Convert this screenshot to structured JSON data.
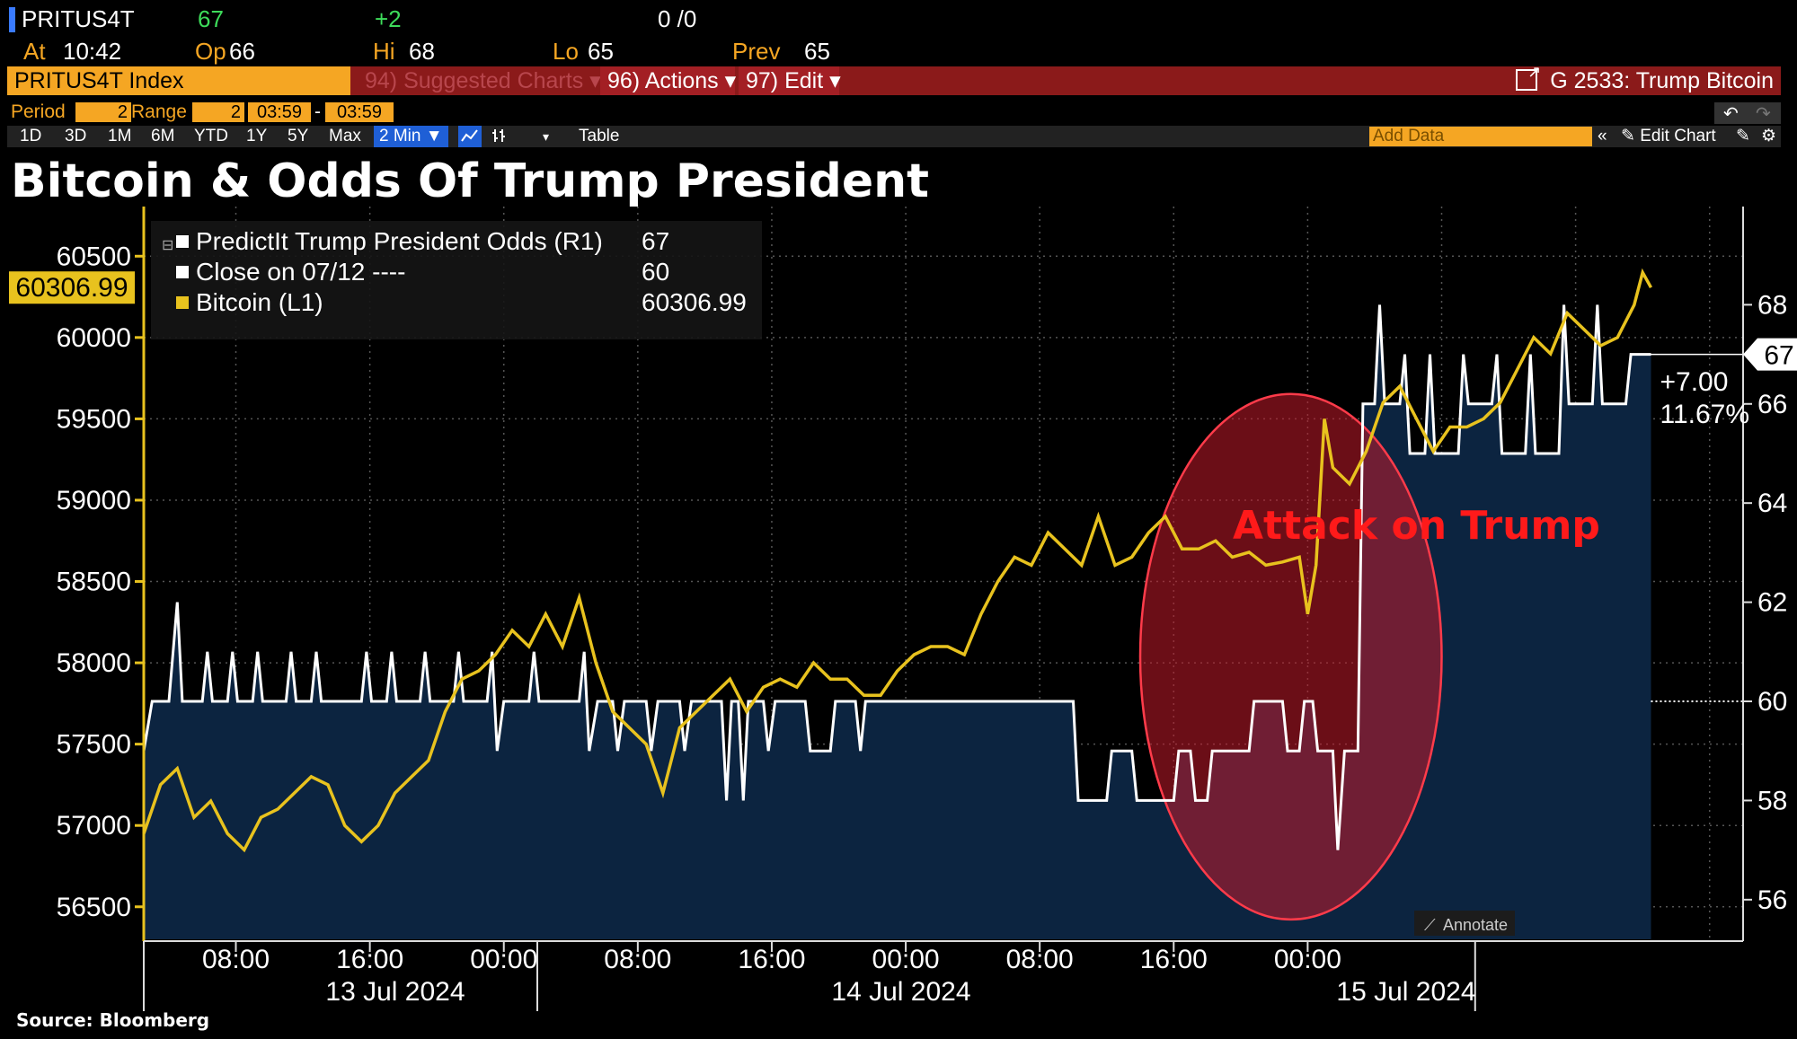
{
  "header": {
    "ticker": "PRITUS4T",
    "last": "67",
    "change": "+2",
    "bidask": "0 /0",
    "at_label": "At",
    "at_time": "10:42",
    "open_label": "Op",
    "open": "66",
    "high_label": "Hi",
    "high": "68",
    "low_label": "Lo",
    "low": "65",
    "prev_label": "Prev",
    "prev": "65"
  },
  "toolbar": {
    "index_name": "PRITUS4T Index",
    "suggested": "94) Suggested Charts ▾",
    "actions": "96) Actions ▾",
    "edit": "97) Edit ▾",
    "chart_title": "G 2533: Trump Bitcoin"
  },
  "period_row": {
    "period_label": "Period",
    "period_value": "2",
    "range_label": "Range",
    "range_value": "2",
    "from_time": "03:59",
    "dash": "-",
    "to_time": "03:59"
  },
  "range_buttons": [
    "1D",
    "3D",
    "1M",
    "6M",
    "YTD",
    "1Y",
    "5Y",
    "Max"
  ],
  "interval": "2 Min ▼",
  "table_label": "Table",
  "add_data_placeholder": "Add Data",
  "edit_chart_label": "Edit Chart",
  "annotate_label": "Annotate",
  "source": "Source: Bloomberg",
  "colors": {
    "bitcoin": "#e8c21e",
    "odds": "#ffffff",
    "area_fill": "#0c2440",
    "ellipse_fill": "#c21a2a",
    "annotation_red": "#ff1a1a",
    "accent_orange": "#f5a623"
  },
  "chart_data": {
    "type": "line",
    "title": "Bitcoin & Odds Of Trump President",
    "legend": [
      {
        "name": "PredictIt Trump President Odds (R1)",
        "value": "67"
      },
      {
        "name": "Close on 07/12 ----",
        "value": "60"
      },
      {
        "name": "Bitcoin (L1)",
        "value": "60306.99"
      }
    ],
    "legend_position": "top-left",
    "left_axis": {
      "ticks": [
        "56500",
        "57000",
        "57500",
        "58000",
        "58500",
        "59000",
        "59500",
        "60000",
        "60500"
      ],
      "range": [
        56300,
        60750
      ],
      "last_value_tag": "60306.99"
    },
    "right_axis": {
      "ticks": [
        "56",
        "58",
        "60",
        "62",
        "64",
        "66",
        "68"
      ],
      "range": [
        55.2,
        69.8
      ],
      "last_value_tag": "67"
    },
    "x_time_labels": [
      "08:00",
      "16:00",
      "00:00",
      "08:00",
      "16:00",
      "00:00",
      "08:00",
      "16:00",
      "00:00"
    ],
    "x_date_labels": [
      "13 Jul 2024",
      "14 Jul 2024",
      "15 Jul 2024"
    ],
    "x_range_hours": [
      2.5,
      98.0
    ],
    "change_annotation": [
      "+7.00",
      "11.67%"
    ],
    "reference_line": {
      "label": "Close on 07/12",
      "value": 60
    },
    "event_annotation": "Attack on  Trump",
    "series": [
      {
        "name": "Bitcoin (L1)",
        "axis": "left",
        "points": [
          [
            2.5,
            56950
          ],
          [
            3.5,
            57250
          ],
          [
            4.5,
            57350
          ],
          [
            5.5,
            57050
          ],
          [
            6.5,
            57150
          ],
          [
            7.5,
            56950
          ],
          [
            8.5,
            56850
          ],
          [
            9.5,
            57050
          ],
          [
            10.5,
            57100
          ],
          [
            11.5,
            57200
          ],
          [
            12.5,
            57300
          ],
          [
            13.5,
            57250
          ],
          [
            14.5,
            57000
          ],
          [
            15.5,
            56900
          ],
          [
            16.5,
            57000
          ],
          [
            17.5,
            57200
          ],
          [
            18.5,
            57300
          ],
          [
            19.5,
            57400
          ],
          [
            20.5,
            57700
          ],
          [
            21.5,
            57900
          ],
          [
            22.5,
            57950
          ],
          [
            23.5,
            58050
          ],
          [
            24.5,
            58200
          ],
          [
            25.5,
            58100
          ],
          [
            26.5,
            58300
          ],
          [
            27.5,
            58100
          ],
          [
            28.5,
            58400
          ],
          [
            29.5,
            58000
          ],
          [
            30.5,
            57700
          ],
          [
            31.5,
            57600
          ],
          [
            32.5,
            57500
          ],
          [
            33.5,
            57200
          ],
          [
            34.5,
            57600
          ],
          [
            35.5,
            57700
          ],
          [
            36.5,
            57800
          ],
          [
            37.5,
            57900
          ],
          [
            38.5,
            57700
          ],
          [
            39.5,
            57850
          ],
          [
            40.5,
            57900
          ],
          [
            41.5,
            57850
          ],
          [
            42.5,
            58000
          ],
          [
            43.5,
            57900
          ],
          [
            44.5,
            57900
          ],
          [
            45.5,
            57800
          ],
          [
            46.5,
            57800
          ],
          [
            47.5,
            57950
          ],
          [
            48.5,
            58050
          ],
          [
            49.5,
            58100
          ],
          [
            50.5,
            58100
          ],
          [
            51.5,
            58050
          ],
          [
            52.5,
            58300
          ],
          [
            53.5,
            58500
          ],
          [
            54.5,
            58650
          ],
          [
            55.5,
            58600
          ],
          [
            56.5,
            58800
          ],
          [
            57.5,
            58700
          ],
          [
            58.5,
            58600
          ],
          [
            59.5,
            58900
          ],
          [
            60.5,
            58600
          ],
          [
            61.5,
            58650
          ],
          [
            62.5,
            58800
          ],
          [
            63.5,
            58900
          ],
          [
            64.5,
            58700
          ],
          [
            65.5,
            58700
          ],
          [
            66.5,
            58750
          ],
          [
            67.5,
            58650
          ],
          [
            68.5,
            58680
          ],
          [
            69.5,
            58600
          ],
          [
            70.5,
            58620
          ],
          [
            71.5,
            58650
          ],
          [
            72.0,
            58300
          ],
          [
            72.5,
            58600
          ],
          [
            73.0,
            59500
          ],
          [
            73.5,
            59200
          ],
          [
            74.5,
            59100
          ],
          [
            75.5,
            59300
          ],
          [
            76.5,
            59600
          ],
          [
            77.5,
            59700
          ],
          [
            78.5,
            59500
          ],
          [
            79.5,
            59300
          ],
          [
            80.5,
            59450
          ],
          [
            81.5,
            59450
          ],
          [
            82.5,
            59500
          ],
          [
            83.5,
            59600
          ],
          [
            84.5,
            59800
          ],
          [
            85.5,
            60000
          ],
          [
            86.5,
            59900
          ],
          [
            87.5,
            60150
          ],
          [
            88.5,
            60050
          ],
          [
            89.5,
            59950
          ],
          [
            90.5,
            60000
          ],
          [
            91.5,
            60200
          ],
          [
            92.0,
            60400
          ],
          [
            92.5,
            60306.99
          ]
        ]
      },
      {
        "name": "PredictIt Trump President Odds (R1)",
        "axis": "right",
        "points": [
          [
            2.5,
            59
          ],
          [
            3.0,
            60
          ],
          [
            4.0,
            60
          ],
          [
            4.5,
            62
          ],
          [
            4.8,
            60
          ],
          [
            6.0,
            60
          ],
          [
            6.3,
            61
          ],
          [
            6.6,
            60
          ],
          [
            7.5,
            60
          ],
          [
            7.8,
            61
          ],
          [
            8.1,
            60
          ],
          [
            9.0,
            60
          ],
          [
            9.3,
            61
          ],
          [
            9.6,
            60
          ],
          [
            11.0,
            60
          ],
          [
            11.3,
            61
          ],
          [
            11.6,
            60
          ],
          [
            12.5,
            60
          ],
          [
            12.8,
            61
          ],
          [
            13.1,
            60
          ],
          [
            15.5,
            60
          ],
          [
            15.8,
            61
          ],
          [
            16.1,
            60
          ],
          [
            17.0,
            60
          ],
          [
            17.3,
            61
          ],
          [
            17.6,
            60
          ],
          [
            19.0,
            60
          ],
          [
            19.3,
            61
          ],
          [
            19.6,
            60
          ],
          [
            21.0,
            60
          ],
          [
            21.3,
            61
          ],
          [
            21.6,
            60
          ],
          [
            23.0,
            60
          ],
          [
            23.3,
            61
          ],
          [
            23.6,
            59
          ],
          [
            24.0,
            60
          ],
          [
            25.5,
            60
          ],
          [
            25.8,
            61
          ],
          [
            26.1,
            60
          ],
          [
            28.5,
            60
          ],
          [
            28.8,
            61
          ],
          [
            29.1,
            59
          ],
          [
            29.6,
            60
          ],
          [
            30.5,
            60
          ],
          [
            30.8,
            59
          ],
          [
            31.2,
            60
          ],
          [
            32.5,
            60
          ],
          [
            32.8,
            59
          ],
          [
            33.2,
            60
          ],
          [
            34.5,
            60
          ],
          [
            34.8,
            59
          ],
          [
            35.2,
            60
          ],
          [
            37.0,
            60
          ],
          [
            37.3,
            58
          ],
          [
            37.6,
            60
          ],
          [
            38.0,
            60
          ],
          [
            38.3,
            58
          ],
          [
            38.6,
            60
          ],
          [
            39.5,
            60
          ],
          [
            39.8,
            59
          ],
          [
            40.2,
            60
          ],
          [
            42.0,
            60
          ],
          [
            42.3,
            59
          ],
          [
            43.5,
            59
          ],
          [
            43.8,
            60
          ],
          [
            45.0,
            60
          ],
          [
            45.3,
            59
          ],
          [
            45.6,
            60
          ],
          [
            58.0,
            60
          ],
          [
            58.3,
            58
          ],
          [
            60.0,
            58
          ],
          [
            60.3,
            59
          ],
          [
            61.5,
            59
          ],
          [
            61.8,
            58
          ],
          [
            64.0,
            58
          ],
          [
            64.3,
            59
          ],
          [
            65.0,
            59
          ],
          [
            65.3,
            58
          ],
          [
            66.0,
            58
          ],
          [
            66.3,
            59
          ],
          [
            68.5,
            59
          ],
          [
            68.8,
            60
          ],
          [
            70.5,
            60
          ],
          [
            70.8,
            59
          ],
          [
            71.5,
            59
          ],
          [
            71.8,
            60
          ],
          [
            72.3,
            60
          ],
          [
            72.6,
            59
          ],
          [
            73.5,
            59
          ],
          [
            73.8,
            57
          ],
          [
            74.2,
            59
          ],
          [
            75.0,
            59
          ],
          [
            75.3,
            66
          ],
          [
            76.0,
            66
          ],
          [
            76.3,
            68
          ],
          [
            76.6,
            66
          ],
          [
            77.5,
            66
          ],
          [
            77.8,
            67
          ],
          [
            78.1,
            65
          ],
          [
            79.0,
            65
          ],
          [
            79.3,
            67
          ],
          [
            79.6,
            65
          ],
          [
            81.0,
            65
          ],
          [
            81.3,
            67
          ],
          [
            81.6,
            66
          ],
          [
            83.0,
            66
          ],
          [
            83.3,
            67
          ],
          [
            83.6,
            65
          ],
          [
            85.0,
            65
          ],
          [
            85.3,
            67
          ],
          [
            85.6,
            65
          ],
          [
            87.0,
            65
          ],
          [
            87.3,
            68
          ],
          [
            87.6,
            66
          ],
          [
            89.0,
            66
          ],
          [
            89.3,
            68
          ],
          [
            89.6,
            66
          ],
          [
            91.0,
            66
          ],
          [
            91.3,
            67
          ],
          [
            92.5,
            67
          ]
        ]
      }
    ]
  }
}
